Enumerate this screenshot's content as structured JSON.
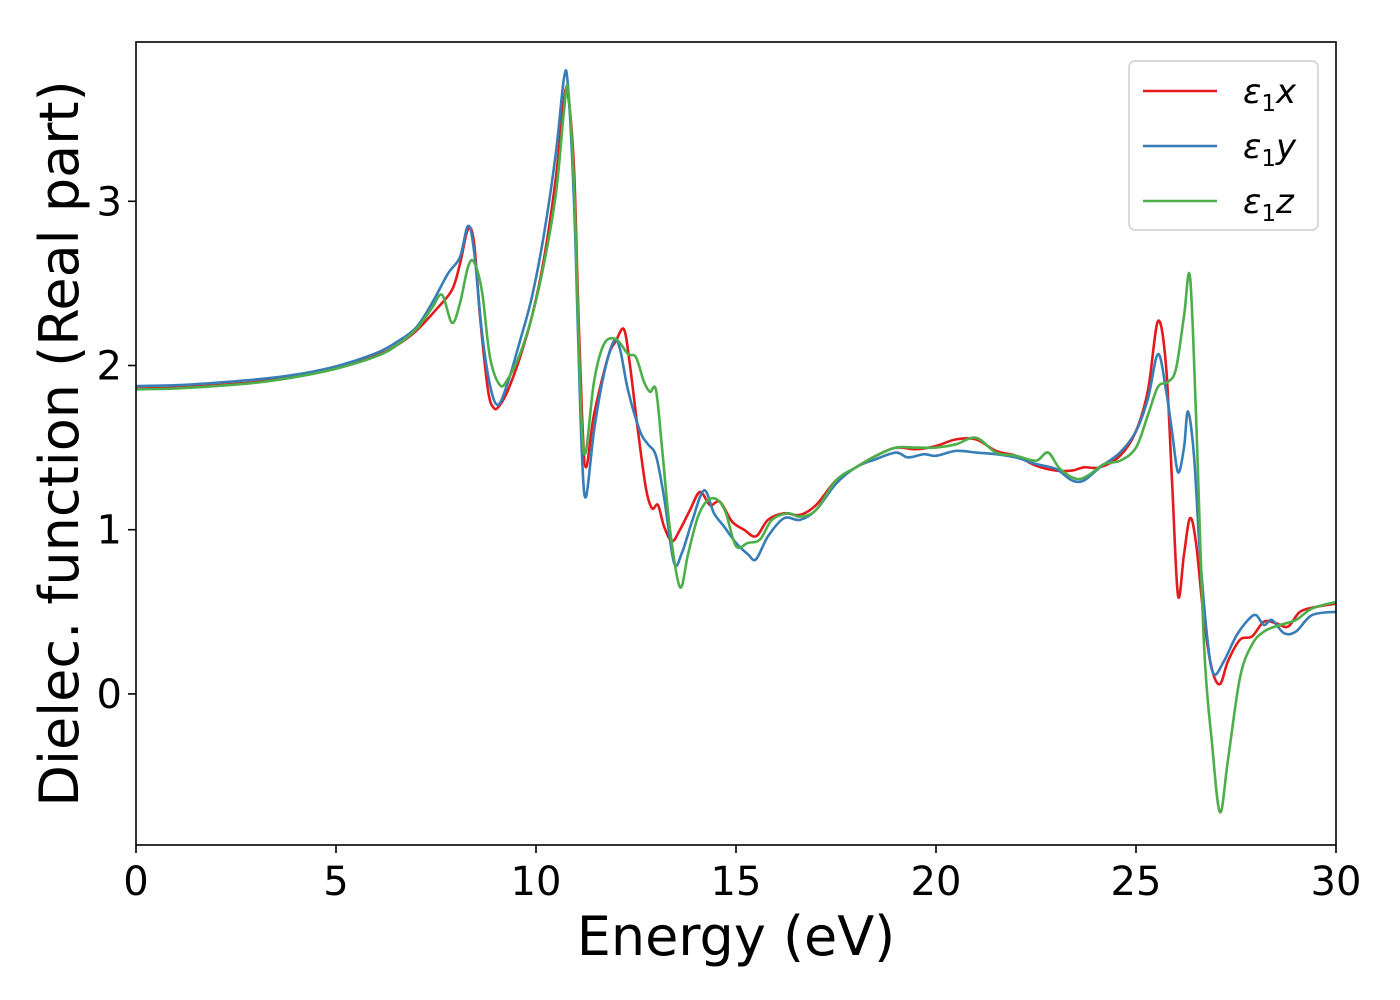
{
  "chart_data": {
    "type": "line",
    "title": "",
    "xlabel": "Energy (eV)",
    "ylabel": "Dielec. function (Real part)",
    "xlim": [
      0,
      30
    ],
    "ylim": [
      -0.92,
      3.97
    ],
    "x_ticks": [
      0,
      5,
      10,
      15,
      20,
      25,
      30
    ],
    "y_ticks": [
      0,
      1,
      2,
      3
    ],
    "grid": false,
    "legend_position": "top-right",
    "series": [
      {
        "name": "ε₁x",
        "legend_main": "ε",
        "legend_sub": "1",
        "legend_tail": "x",
        "color": "#e41a1c",
        "points": [
          [
            0,
            1.86
          ],
          [
            1,
            1.865
          ],
          [
            2,
            1.88
          ],
          [
            3,
            1.9
          ],
          [
            4,
            1.935
          ],
          [
            5,
            1.985
          ],
          [
            6,
            2.06
          ],
          [
            6.5,
            2.12
          ],
          [
            7,
            2.21
          ],
          [
            7.5,
            2.34
          ],
          [
            7.9,
            2.46
          ],
          [
            8.1,
            2.62
          ],
          [
            8.3,
            2.83
          ],
          [
            8.45,
            2.75
          ],
          [
            8.6,
            2.3
          ],
          [
            8.8,
            1.85
          ],
          [
            8.95,
            1.74
          ],
          [
            9.1,
            1.76
          ],
          [
            9.3,
            1.85
          ],
          [
            9.6,
            2.05
          ],
          [
            9.9,
            2.3
          ],
          [
            10.2,
            2.65
          ],
          [
            10.5,
            3.15
          ],
          [
            10.7,
            3.62
          ],
          [
            10.8,
            3.65
          ],
          [
            10.95,
            3.2
          ],
          [
            11.05,
            2.4
          ],
          [
            11.15,
            1.7
          ],
          [
            11.25,
            1.38
          ],
          [
            11.45,
            1.7
          ],
          [
            11.8,
            2.05
          ],
          [
            12.0,
            2.15
          ],
          [
            12.2,
            2.22
          ],
          [
            12.35,
            2.0
          ],
          [
            12.55,
            1.6
          ],
          [
            12.75,
            1.25
          ],
          [
            12.9,
            1.13
          ],
          [
            13.05,
            1.15
          ],
          [
            13.2,
            1.02
          ],
          [
            13.4,
            0.93
          ],
          [
            13.6,
            1.0
          ],
          [
            13.85,
            1.12
          ],
          [
            14.1,
            1.23
          ],
          [
            14.35,
            1.15
          ],
          [
            14.6,
            1.17
          ],
          [
            14.9,
            1.05
          ],
          [
            15.2,
            1.0
          ],
          [
            15.5,
            0.96
          ],
          [
            15.8,
            1.06
          ],
          [
            16.2,
            1.1
          ],
          [
            16.6,
            1.09
          ],
          [
            17.0,
            1.15
          ],
          [
            17.5,
            1.3
          ],
          [
            18.0,
            1.38
          ],
          [
            18.5,
            1.45
          ],
          [
            19.0,
            1.5
          ],
          [
            19.5,
            1.49
          ],
          [
            20.0,
            1.51
          ],
          [
            20.5,
            1.55
          ],
          [
            21.0,
            1.55
          ],
          [
            21.5,
            1.48
          ],
          [
            22.0,
            1.45
          ],
          [
            22.5,
            1.39
          ],
          [
            23.0,
            1.36
          ],
          [
            23.4,
            1.36
          ],
          [
            23.7,
            1.38
          ],
          [
            24.1,
            1.38
          ],
          [
            24.6,
            1.45
          ],
          [
            25.0,
            1.6
          ],
          [
            25.3,
            1.85
          ],
          [
            25.55,
            2.27
          ],
          [
            25.75,
            2.0
          ],
          [
            25.9,
            1.3
          ],
          [
            26.05,
            0.6
          ],
          [
            26.2,
            0.85
          ],
          [
            26.35,
            1.07
          ],
          [
            26.5,
            0.92
          ],
          [
            26.7,
            0.45
          ],
          [
            26.9,
            0.15
          ],
          [
            27.1,
            0.06
          ],
          [
            27.3,
            0.2
          ],
          [
            27.6,
            0.33
          ],
          [
            27.9,
            0.35
          ],
          [
            28.2,
            0.44
          ],
          [
            28.5,
            0.43
          ],
          [
            28.8,
            0.41
          ],
          [
            29.1,
            0.5
          ],
          [
            29.5,
            0.53
          ],
          [
            30,
            0.55
          ]
        ]
      },
      {
        "name": "ε₁y",
        "legend_main": "ε",
        "legend_sub": "1",
        "legend_tail": "y",
        "color": "#377eb8",
        "points": [
          [
            0,
            1.875
          ],
          [
            1,
            1.88
          ],
          [
            2,
            1.895
          ],
          [
            3,
            1.915
          ],
          [
            4,
            1.945
          ],
          [
            5,
            1.995
          ],
          [
            6,
            2.075
          ],
          [
            6.5,
            2.14
          ],
          [
            7,
            2.23
          ],
          [
            7.4,
            2.38
          ],
          [
            7.8,
            2.56
          ],
          [
            8.1,
            2.66
          ],
          [
            8.3,
            2.85
          ],
          [
            8.45,
            2.7
          ],
          [
            8.65,
            2.2
          ],
          [
            8.85,
            1.88
          ],
          [
            9.05,
            1.76
          ],
          [
            9.3,
            1.9
          ],
          [
            9.6,
            2.15
          ],
          [
            9.9,
            2.42
          ],
          [
            10.2,
            2.8
          ],
          [
            10.5,
            3.3
          ],
          [
            10.7,
            3.75
          ],
          [
            10.8,
            3.7
          ],
          [
            10.95,
            3.0
          ],
          [
            11.05,
            2.2
          ],
          [
            11.15,
            1.45
          ],
          [
            11.25,
            1.2
          ],
          [
            11.45,
            1.6
          ],
          [
            11.7,
            1.95
          ],
          [
            11.95,
            2.15
          ],
          [
            12.1,
            2.1
          ],
          [
            12.3,
            1.85
          ],
          [
            12.6,
            1.6
          ],
          [
            12.8,
            1.52
          ],
          [
            13.0,
            1.45
          ],
          [
            13.2,
            1.2
          ],
          [
            13.45,
            0.8
          ],
          [
            13.65,
            0.86
          ],
          [
            13.9,
            1.05
          ],
          [
            14.2,
            1.24
          ],
          [
            14.45,
            1.1
          ],
          [
            14.7,
            1.02
          ],
          [
            15.0,
            0.92
          ],
          [
            15.3,
            0.85
          ],
          [
            15.5,
            0.82
          ],
          [
            15.8,
            0.96
          ],
          [
            16.2,
            1.07
          ],
          [
            16.6,
            1.06
          ],
          [
            17.0,
            1.12
          ],
          [
            17.5,
            1.28
          ],
          [
            18.0,
            1.38
          ],
          [
            18.5,
            1.43
          ],
          [
            19.0,
            1.47
          ],
          [
            19.3,
            1.44
          ],
          [
            19.7,
            1.46
          ],
          [
            20.0,
            1.45
          ],
          [
            20.5,
            1.48
          ],
          [
            21.0,
            1.47
          ],
          [
            21.5,
            1.46
          ],
          [
            22.0,
            1.44
          ],
          [
            22.5,
            1.4
          ],
          [
            23.0,
            1.37
          ],
          [
            23.4,
            1.3
          ],
          [
            23.7,
            1.3
          ],
          [
            24.1,
            1.38
          ],
          [
            24.6,
            1.47
          ],
          [
            25.0,
            1.6
          ],
          [
            25.3,
            1.8
          ],
          [
            25.55,
            2.07
          ],
          [
            25.75,
            1.85
          ],
          [
            25.9,
            1.6
          ],
          [
            26.05,
            1.35
          ],
          [
            26.2,
            1.5
          ],
          [
            26.3,
            1.72
          ],
          [
            26.45,
            1.45
          ],
          [
            26.6,
            0.85
          ],
          [
            26.8,
            0.3
          ],
          [
            26.95,
            0.12
          ],
          [
            27.2,
            0.2
          ],
          [
            27.5,
            0.35
          ],
          [
            27.8,
            0.45
          ],
          [
            28.0,
            0.48
          ],
          [
            28.2,
            0.42
          ],
          [
            28.4,
            0.45
          ],
          [
            28.7,
            0.37
          ],
          [
            29.0,
            0.38
          ],
          [
            29.4,
            0.48
          ],
          [
            30,
            0.5
          ]
        ]
      },
      {
        "name": "ε₁z",
        "legend_main": "ε",
        "legend_sub": "1",
        "legend_tail": "z",
        "color": "#4daf4a",
        "points": [
          [
            0,
            1.855
          ],
          [
            1,
            1.86
          ],
          [
            2,
            1.875
          ],
          [
            3,
            1.895
          ],
          [
            4,
            1.93
          ],
          [
            5,
            1.98
          ],
          [
            6,
            2.055
          ],
          [
            6.5,
            2.12
          ],
          [
            7,
            2.22
          ],
          [
            7.4,
            2.35
          ],
          [
            7.65,
            2.43
          ],
          [
            7.9,
            2.26
          ],
          [
            8.1,
            2.38
          ],
          [
            8.3,
            2.6
          ],
          [
            8.45,
            2.63
          ],
          [
            8.65,
            2.45
          ],
          [
            8.85,
            2.05
          ],
          [
            9.1,
            1.88
          ],
          [
            9.3,
            1.92
          ],
          [
            9.6,
            2.07
          ],
          [
            9.9,
            2.3
          ],
          [
            10.2,
            2.62
          ],
          [
            10.5,
            3.05
          ],
          [
            10.7,
            3.55
          ],
          [
            10.8,
            3.68
          ],
          [
            10.95,
            3.1
          ],
          [
            11.05,
            2.3
          ],
          [
            11.15,
            1.6
          ],
          [
            11.25,
            1.48
          ],
          [
            11.45,
            1.9
          ],
          [
            11.7,
            2.13
          ],
          [
            12.0,
            2.16
          ],
          [
            12.3,
            2.07
          ],
          [
            12.5,
            2.05
          ],
          [
            12.7,
            1.9
          ],
          [
            12.85,
            1.84
          ],
          [
            13.0,
            1.85
          ],
          [
            13.15,
            1.5
          ],
          [
            13.35,
            1.0
          ],
          [
            13.6,
            0.65
          ],
          [
            13.8,
            0.85
          ],
          [
            14.05,
            1.08
          ],
          [
            14.3,
            1.18
          ],
          [
            14.55,
            1.18
          ],
          [
            14.75,
            1.1
          ],
          [
            15.0,
            0.9
          ],
          [
            15.3,
            0.92
          ],
          [
            15.6,
            0.94
          ],
          [
            15.9,
            1.06
          ],
          [
            16.3,
            1.1
          ],
          [
            16.6,
            1.08
          ],
          [
            17.0,
            1.12
          ],
          [
            17.5,
            1.3
          ],
          [
            18.0,
            1.38
          ],
          [
            18.5,
            1.45
          ],
          [
            19.0,
            1.5
          ],
          [
            19.5,
            1.5
          ],
          [
            20.0,
            1.5
          ],
          [
            20.5,
            1.52
          ],
          [
            21.0,
            1.56
          ],
          [
            21.5,
            1.47
          ],
          [
            22.0,
            1.45
          ],
          [
            22.5,
            1.42
          ],
          [
            22.8,
            1.47
          ],
          [
            23.1,
            1.37
          ],
          [
            23.5,
            1.31
          ],
          [
            23.8,
            1.33
          ],
          [
            24.2,
            1.4
          ],
          [
            24.6,
            1.42
          ],
          [
            25.0,
            1.5
          ],
          [
            25.3,
            1.7
          ],
          [
            25.55,
            1.87
          ],
          [
            25.8,
            1.9
          ],
          [
            26.0,
            1.98
          ],
          [
            26.2,
            2.3
          ],
          [
            26.35,
            2.54
          ],
          [
            26.5,
            1.7
          ],
          [
            26.7,
            0.3
          ],
          [
            26.9,
            -0.3
          ],
          [
            27.1,
            -0.72
          ],
          [
            27.3,
            -0.4
          ],
          [
            27.6,
            0.1
          ],
          [
            27.9,
            0.3
          ],
          [
            28.2,
            0.38
          ],
          [
            28.6,
            0.42
          ],
          [
            29.0,
            0.45
          ],
          [
            29.4,
            0.52
          ],
          [
            30,
            0.56
          ]
        ]
      }
    ]
  }
}
